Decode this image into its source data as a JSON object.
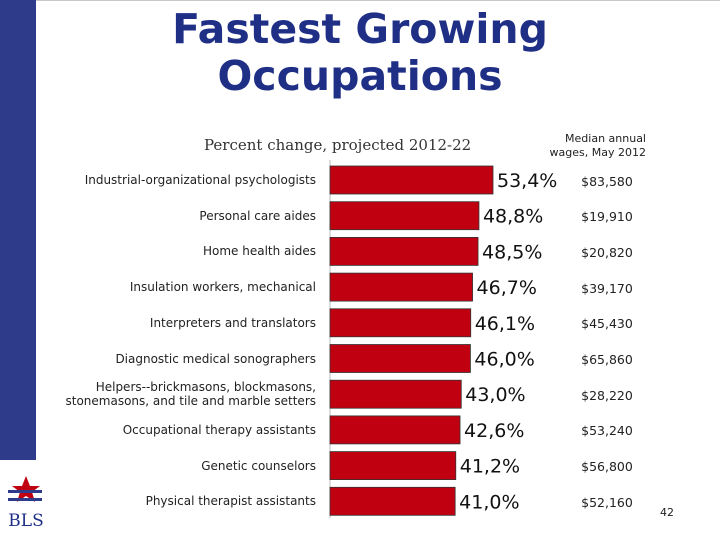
{
  "slide": {
    "title_line1": "Fastest Growing",
    "title_line2": "Occupations",
    "subtitle": "Percent change, projected 2012-22",
    "wage_header_line1": "Median annual",
    "wage_header_line2": "wages, May 2012",
    "logo_text": "BLS",
    "page_number": "42"
  },
  "colors": {
    "bar": "#c00010",
    "title": "#1f2f86",
    "sidebar": "#2d3b8a"
  },
  "chart_data": {
    "type": "bar",
    "orientation": "horizontal",
    "title": "Percent change, projected 2012-22",
    "categories": [
      "Industrial-organizational psychologists",
      "Personal care aides",
      "Home health aides",
      "Insulation workers, mechanical",
      "Interpreters and translators",
      "Diagnostic medical sonographers",
      "Helpers--brickmasons, blockmasons, stonemasons, and tile and marble setters",
      "Occupational therapy assistants",
      "Genetic counselors",
      "Physical therapist assistants"
    ],
    "values": [
      53.4,
      48.8,
      48.5,
      46.7,
      46.1,
      46.0,
      43.0,
      42.6,
      41.2,
      41.0
    ],
    "value_labels": [
      "53,4%",
      "48,8%",
      "48,5%",
      "46,7%",
      "46,1%",
      "46,0%",
      "43,0%",
      "42,6%",
      "41,2%",
      "41,0%"
    ],
    "wages": [
      "$83,580",
      "$19,910",
      "$20,820",
      "$39,170",
      "$45,430",
      "$65,860",
      "$28,220",
      "$53,240",
      "$56,800",
      "$52,160"
    ],
    "xlim": [
      0,
      53.4
    ]
  }
}
